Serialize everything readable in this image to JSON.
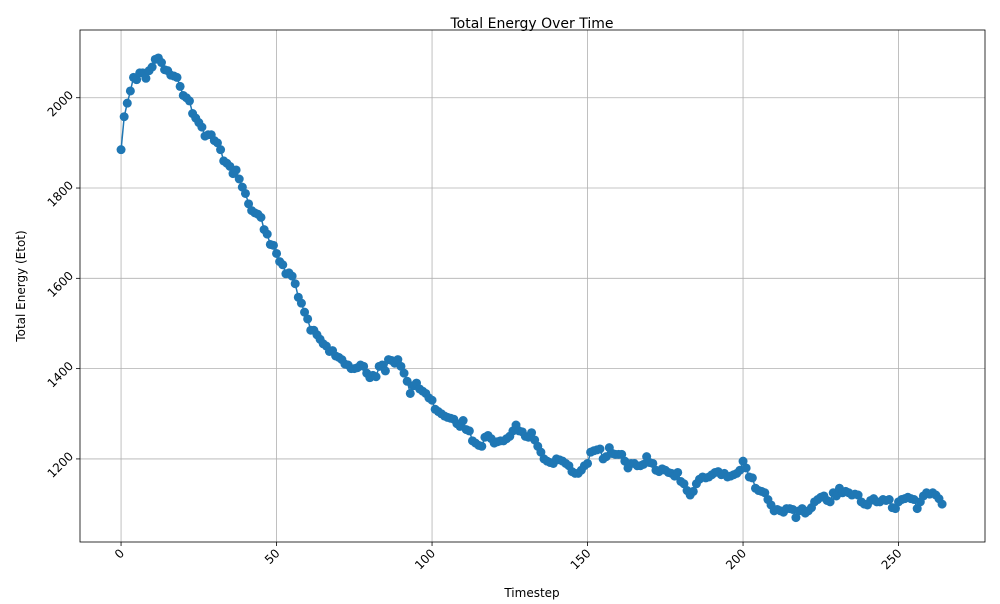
{
  "chart_data": {
    "type": "line",
    "title": "Total Energy Over Time",
    "x_label": "Timestep",
    "y_label": "Total Energy (Etot)",
    "x": [
      0,
      1,
      2,
      3,
      4,
      5,
      6,
      7,
      8,
      9,
      10,
      11,
      12,
      13,
      14,
      15,
      16,
      17,
      18,
      19,
      20,
      21,
      22,
      23,
      24,
      25,
      26,
      27,
      28,
      29,
      30,
      31,
      32,
      33,
      34,
      35,
      36,
      37,
      38,
      39,
      40,
      41,
      42,
      43,
      44,
      45,
      46,
      47,
      48,
      49,
      50,
      51,
      52,
      53,
      54,
      55,
      56,
      57,
      58,
      59,
      60,
      61,
      62,
      63,
      64,
      65,
      66,
      67,
      68,
      69,
      70,
      71,
      72,
      73,
      74,
      75,
      76,
      77,
      78,
      79,
      80,
      81,
      82,
      83,
      84,
      85,
      86,
      87,
      88,
      89,
      90,
      91,
      92,
      93,
      94,
      95,
      96,
      97,
      98,
      99,
      100,
      101,
      102,
      103,
      104,
      105,
      106,
      107,
      108,
      109,
      110,
      111,
      112,
      113,
      114,
      115,
      116,
      117,
      118,
      119,
      120,
      121,
      122,
      123,
      124,
      125,
      126,
      127,
      128,
      129,
      130,
      131,
      132,
      133,
      134,
      135,
      136,
      137,
      138,
      139,
      140,
      141,
      142,
      143,
      144,
      145,
      146,
      147,
      148,
      149,
      150,
      151,
      152,
      153,
      154,
      155,
      156,
      157,
      158,
      159,
      160,
      161,
      162,
      163,
      164,
      165,
      166,
      167,
      168,
      169,
      170,
      171,
      172,
      173,
      174,
      175,
      176,
      177,
      178,
      179,
      180,
      181,
      182,
      183,
      184,
      185,
      186,
      187,
      188,
      189,
      190,
      191,
      192,
      193,
      194,
      195,
      196,
      197,
      198,
      199,
      200,
      201,
      202,
      203,
      204,
      205,
      206,
      207,
      208,
      209,
      210,
      211,
      212,
      213,
      214,
      215,
      216,
      217,
      218,
      219,
      220,
      221,
      222,
      223,
      224,
      225,
      226,
      227,
      228,
      229,
      230,
      231,
      232,
      233,
      234,
      235,
      236,
      237,
      238,
      239,
      240,
      241,
      242,
      243,
      244,
      245,
      246,
      247,
      248,
      249,
      250,
      251,
      252,
      253,
      254,
      255,
      256,
      257,
      258,
      259,
      260,
      261,
      262,
      263,
      264
    ],
    "values": [
      1885,
      1958,
      1988,
      2015,
      2045,
      2040,
      2055,
      2055,
      2043,
      2060,
      2068,
      2085,
      2088,
      2078,
      2062,
      2060,
      2050,
      2048,
      2045,
      2025,
      2005,
      2000,
      1993,
      1965,
      1955,
      1945,
      1935,
      1915,
      1918,
      1918,
      1905,
      1900,
      1885,
      1860,
      1855,
      1848,
      1832,
      1840,
      1820,
      1802,
      1788,
      1765,
      1750,
      1745,
      1742,
      1735,
      1708,
      1698,
      1675,
      1673,
      1655,
      1637,
      1630,
      1610,
      1612,
      1605,
      1588,
      1558,
      1545,
      1525,
      1510,
      1485,
      1485,
      1475,
      1465,
      1455,
      1450,
      1438,
      1440,
      1428,
      1425,
      1420,
      1410,
      1408,
      1400,
      1400,
      1402,
      1408,
      1405,
      1390,
      1380,
      1385,
      1382,
      1405,
      1408,
      1395,
      1420,
      1418,
      1412,
      1420,
      1405,
      1390,
      1372,
      1345,
      1362,
      1368,
      1355,
      1350,
      1345,
      1335,
      1330,
      1310,
      1305,
      1300,
      1295,
      1292,
      1290,
      1288,
      1278,
      1272,
      1285,
      1265,
      1262,
      1240,
      1235,
      1230,
      1228,
      1248,
      1252,
      1245,
      1235,
      1238,
      1240,
      1240,
      1245,
      1250,
      1262,
      1275,
      1262,
      1260,
      1250,
      1248,
      1258,
      1242,
      1228,
      1215,
      1200,
      1195,
      1192,
      1190,
      1200,
      1198,
      1195,
      1190,
      1185,
      1172,
      1168,
      1168,
      1175,
      1185,
      1190,
      1215,
      1218,
      1220,
      1222,
      1200,
      1205,
      1225,
      1212,
      1210,
      1210,
      1210,
      1195,
      1180,
      1190,
      1190,
      1185,
      1185,
      1188,
      1205,
      1192,
      1190,
      1175,
      1172,
      1178,
      1175,
      1170,
      1168,
      1162,
      1170,
      1150,
      1145,
      1130,
      1120,
      1128,
      1145,
      1155,
      1160,
      1158,
      1160,
      1165,
      1170,
      1172,
      1165,
      1168,
      1160,
      1162,
      1165,
      1168,
      1175,
      1195,
      1180,
      1160,
      1158,
      1135,
      1130,
      1128,
      1125,
      1110,
      1098,
      1085,
      1088,
      1085,
      1082,
      1090,
      1090,
      1088,
      1070,
      1085,
      1090,
      1080,
      1085,
      1092,
      1105,
      1110,
      1115,
      1118,
      1108,
      1105,
      1125,
      1118,
      1135,
      1125,
      1128,
      1125,
      1120,
      1122,
      1120,
      1105,
      1100,
      1098,
      1108,
      1112,
      1105,
      1105,
      1110,
      1108,
      1110,
      1092,
      1090,
      1105,
      1110,
      1112,
      1115,
      1112,
      1110,
      1090,
      1105,
      1118,
      1125,
      1122,
      1125,
      1120,
      1112,
      1100
    ],
    "color": "#1f77b4",
    "xlim": [
      -13.2,
      277.8
    ],
    "ylim": [
      1016,
      2150
    ],
    "xticks": [
      0,
      50,
      100,
      150,
      200,
      250
    ],
    "yticks": [
      1200,
      1400,
      1600,
      1800,
      2000
    ],
    "grid": true
  }
}
